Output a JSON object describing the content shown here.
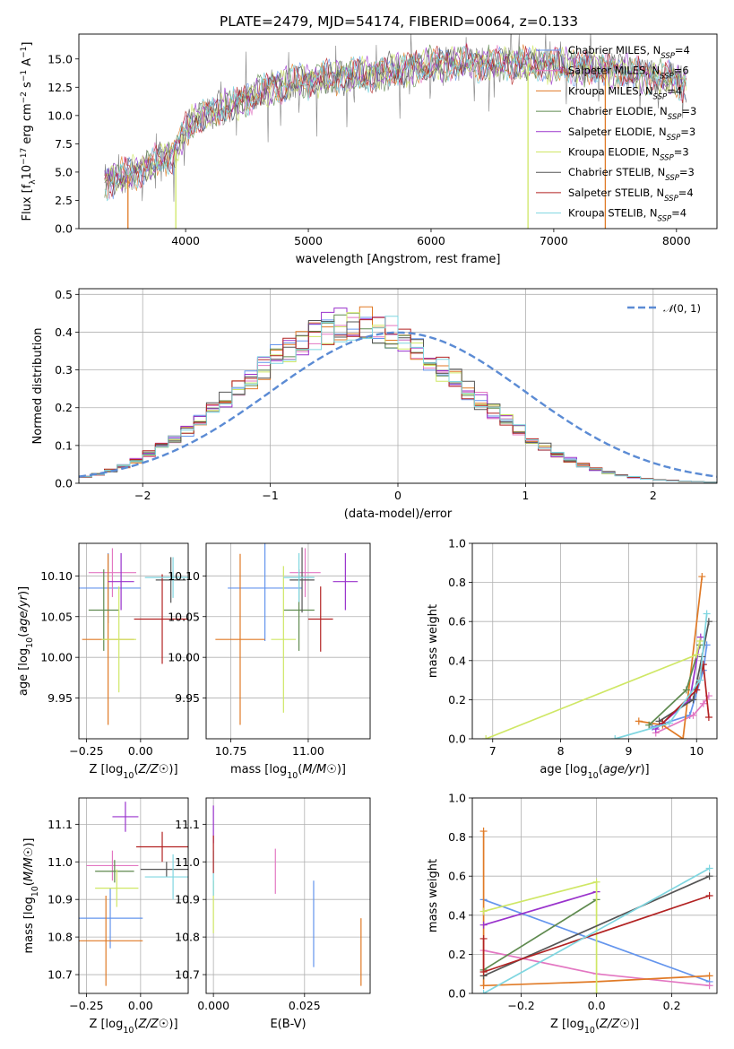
{
  "title": "PLATE=2479, MJD=54174, FIBERID=0064, z=0.133",
  "colors": {
    "Chabrier MILES": "#6495ed",
    "Salpeter MILES": "#e377c2",
    "Kroupa MILES": "#e07a26",
    "Chabrier ELODIE": "#5f8a4f",
    "Salpeter ELODIE": "#9932cc",
    "Kroupa ELODIE": "#cfe765",
    "Chabrier STELIB": "#555555",
    "Salpeter STELIB": "#b22222",
    "Kroupa STELIB": "#7fd6e0",
    "data": "#7f7f7f",
    "normal": "#5b8bd4"
  },
  "chart_data": [
    {
      "id": "spectrum",
      "type": "line",
      "xlabel": "wavelength [Angstrom, rest frame]",
      "ylabel": "Flux [f_λ10^-17 erg cm^-2 s^-1 A^-1]",
      "xlim": [
        3130,
        8330
      ],
      "ylim": [
        0,
        17.2
      ],
      "xticks": [
        4000,
        5000,
        6000,
        7000,
        8000
      ],
      "yticks": [
        0.0,
        2.5,
        5.0,
        7.5,
        10.0,
        12.5,
        15.0
      ],
      "grid": false,
      "legend_position": "top-right",
      "continuum": {
        "x": [
          3340,
          3500,
          3700,
          3900,
          4000,
          4100,
          4300,
          4500,
          4700,
          4900,
          5100,
          5300,
          5500,
          5700,
          5900,
          6100,
          6300,
          6500,
          6700,
          6900,
          7100,
          7300,
          7500,
          7700,
          7900,
          8080
        ],
        "y": [
          4.2,
          4.6,
          5.6,
          6.5,
          8.6,
          9.8,
          10.6,
          11.4,
          12.5,
          13.0,
          13.2,
          13.5,
          13.6,
          14.0,
          14.3,
          14.6,
          14.7,
          14.6,
          14.6,
          14.5,
          14.4,
          14.2,
          14.0,
          13.6,
          13.3,
          12.9
        ]
      },
      "vertical_lines": [
        {
          "series": "Kroupa MILES",
          "x": 3530
        },
        {
          "series": "Kroupa ELODIE",
          "x": 3920
        },
        {
          "series": "Kroupa ELODIE",
          "x": 6790
        },
        {
          "series": "Kroupa MILES",
          "x": 7420
        }
      ],
      "legend": [
        {
          "name": "Chabrier MILES",
          "sub": "SSP",
          "n": 4
        },
        {
          "name": "Salpeter MILES",
          "sub": "SSP",
          "n": 6
        },
        {
          "name": "Kroupa MILES",
          "sub": "SSP",
          "n": 4
        },
        {
          "name": "Chabrier ELODIE",
          "sub": "SSP",
          "n": 3
        },
        {
          "name": "Salpeter ELODIE",
          "sub": "SSP",
          "n": 3
        },
        {
          "name": "Kroupa ELODIE",
          "sub": "SSP",
          "n": 3
        },
        {
          "name": "Chabrier STELIB",
          "sub": "SSP",
          "n": 3
        },
        {
          "name": "Salpeter STELIB",
          "sub": "SSP",
          "n": 4
        },
        {
          "name": "Kroupa STELIB",
          "sub": "SSP",
          "n": 4
        }
      ]
    },
    {
      "id": "residuals",
      "type": "line",
      "xlabel": "(data-model)/error",
      "ylabel": "Normed distribution",
      "xlim": [
        -2.5,
        2.5
      ],
      "ylim": [
        0,
        0.515
      ],
      "xticks": [
        -2,
        -1,
        0,
        1,
        2
      ],
      "yticks": [
        0.0,
        0.1,
        0.2,
        0.3,
        0.4,
        0.5
      ],
      "grid": true,
      "legend_position": "top-right",
      "legend_label": "N(0, 1)",
      "bin_width": 0.1,
      "approx_histogram_heights": [
        0.017,
        0.024,
        0.034,
        0.045,
        0.06,
        0.078,
        0.096,
        0.118,
        0.14,
        0.168,
        0.196,
        0.224,
        0.251,
        0.28,
        0.307,
        0.331,
        0.356,
        0.377,
        0.395,
        0.41,
        0.419,
        0.424,
        0.421,
        0.413,
        0.399,
        0.38,
        0.356,
        0.33,
        0.302,
        0.274,
        0.245,
        0.218,
        0.19,
        0.164,
        0.14,
        0.117,
        0.097,
        0.078,
        0.062,
        0.048,
        0.037,
        0.028,
        0.021,
        0.016,
        0.012,
        0.009,
        0.007,
        0.005,
        0.004,
        0.003
      ]
    },
    {
      "id": "age-vs-Z",
      "type": "scatter",
      "xlabel": "Z [log10(Z/Z☉)]",
      "ylabel": "age  [log10(age/yr)]",
      "xlim": [
        -0.285,
        0.22
      ],
      "ylim": [
        9.9,
        10.14
      ],
      "xticks": [
        -0.25,
        0.0
      ],
      "xtick_labels": [
        "−0.25",
        "0.00"
      ],
      "yticks": [
        9.95,
        10.0,
        10.05,
        10.1
      ],
      "grid": true,
      "points": [
        {
          "series": "Chabrier MILES",
          "x": -0.15,
          "xerr": 0.15,
          "y": 10.085,
          "yerr": 0.043
        },
        {
          "series": "Salpeter MILES",
          "x": -0.13,
          "xerr": 0.11,
          "y": 10.104,
          "yerr": 0.03
        },
        {
          "series": "Kroupa MILES",
          "x": -0.15,
          "xerr": 0.12,
          "y": 10.022,
          "yerr": 0.105
        },
        {
          "series": "Chabrier ELODIE",
          "x": -0.17,
          "xerr": 0.07,
          "y": 10.058,
          "yerr": 0.05
        },
        {
          "series": "Salpeter ELODIE",
          "x": -0.09,
          "xerr": 0.06,
          "y": 10.093,
          "yerr": 0.035
        },
        {
          "series": "Kroupa ELODIE",
          "x": -0.1,
          "xerr": 0.08,
          "y": 10.022,
          "yerr": 0.065
        },
        {
          "series": "Chabrier STELIB",
          "x": 0.14,
          "xerr": 0.07,
          "y": 10.095,
          "yerr": 0.028
        },
        {
          "series": "Salpeter STELIB",
          "x": 0.1,
          "xerr": 0.13,
          "y": 10.047,
          "yerr": 0.055
        },
        {
          "series": "Kroupa STELIB",
          "x": 0.15,
          "xerr": 0.13,
          "y": 10.098,
          "yerr": 0.025
        }
      ]
    },
    {
      "id": "age-vs-mass",
      "type": "scatter",
      "xlabel": "mass [log10(M/M☉)]",
      "ylabel": "",
      "xlim": [
        10.67,
        11.2
      ],
      "ylim": [
        9.9,
        10.14
      ],
      "xticks": [
        10.75,
        11.0
      ],
      "xtick_labels": [
        "10.75",
        "11.00"
      ],
      "yticks": [
        9.95,
        10.0,
        10.05,
        10.1
      ],
      "grid": true,
      "points": [
        {
          "series": "Chabrier MILES",
          "x": 10.86,
          "xerr": 0.12,
          "y": 10.085,
          "yerr": 0.065
        },
        {
          "series": "Salpeter MILES",
          "x": 10.99,
          "xerr": 0.05,
          "y": 10.104,
          "yerr": 0.03
        },
        {
          "series": "Kroupa MILES",
          "x": 10.78,
          "xerr": 0.08,
          "y": 10.022,
          "yerr": 0.105
        },
        {
          "series": "Chabrier ELODIE",
          "x": 10.97,
          "xerr": 0.05,
          "y": 10.058,
          "yerr": 0.05
        },
        {
          "series": "Salpeter ELODIE",
          "x": 11.12,
          "xerr": 0.04,
          "y": 10.093,
          "yerr": 0.035
        },
        {
          "series": "Kroupa ELODIE",
          "x": 10.92,
          "xerr": 0.04,
          "y": 10.022,
          "yerr": 0.09
        },
        {
          "series": "Chabrier STELIB",
          "x": 10.98,
          "xerr": 0.04,
          "y": 10.095,
          "yerr": 0.04
        },
        {
          "series": "Salpeter STELIB",
          "x": 11.04,
          "xerr": 0.04,
          "y": 10.047,
          "yerr": 0.04
        },
        {
          "series": "Kroupa STELIB",
          "x": 10.97,
          "xerr": 0.05,
          "y": 10.098,
          "yerr": 0.03
        }
      ]
    },
    {
      "id": "massweight-vs-age",
      "type": "line",
      "xlabel": "age  [log10(age/yr)]",
      "ylabel": "mass weight",
      "xlim": [
        6.7,
        10.3
      ],
      "ylim": [
        0,
        1
      ],
      "xticks": [
        7,
        8,
        9,
        10
      ],
      "yticks": [
        0.0,
        0.2,
        0.4,
        0.6,
        0.8,
        1.0
      ],
      "grid": true,
      "series": [
        {
          "name": "Chabrier MILES",
          "x": [
            9.35,
            9.9,
            10.1,
            10.15
          ],
          "y": [
            0.06,
            0.12,
            0.35,
            0.48
          ]
        },
        {
          "name": "Salpeter MILES",
          "x": [
            9.4,
            9.95,
            10.1,
            10.18
          ],
          "y": [
            0.03,
            0.12,
            0.18,
            0.22
          ]
        },
        {
          "name": "Kroupa MILES",
          "x": [
            9.15,
            9.5,
            9.8,
            10.08
          ],
          "y": [
            0.09,
            0.07,
            0.0,
            0.83
          ]
        },
        {
          "name": "Chabrier ELODIE",
          "x": [
            9.3,
            9.85,
            10.05
          ],
          "y": [
            0.07,
            0.25,
            0.48
          ]
        },
        {
          "name": "Salpeter ELODIE",
          "x": [
            9.4,
            9.9,
            10.06
          ],
          "y": [
            0.05,
            0.2,
            0.52
          ]
        },
        {
          "name": "Kroupa ELODIE",
          "x": [
            6.9,
            10.0,
            10.05
          ],
          "y": [
            0.0,
            0.43,
            0.5
          ]
        },
        {
          "name": "Chabrier STELIB",
          "x": [
            9.45,
            9.95,
            10.08,
            10.18
          ],
          "y": [
            0.09,
            0.2,
            0.42,
            0.6
          ]
        },
        {
          "name": "Salpeter STELIB",
          "x": [
            9.5,
            10.0,
            10.1,
            10.18
          ],
          "y": [
            0.08,
            0.25,
            0.38,
            0.11
          ]
        },
        {
          "name": "Kroupa STELIB",
          "x": [
            8.8,
            9.6,
            10.05,
            10.15
          ],
          "y": [
            0.0,
            0.08,
            0.3,
            0.64
          ]
        }
      ]
    },
    {
      "id": "mass-vs-Z",
      "type": "scatter",
      "xlabel": "Z [log10(Z/Z☉)]",
      "ylabel": "mass [log10(M/M☉)]",
      "xlim": [
        -0.285,
        0.22
      ],
      "ylim": [
        10.65,
        11.17
      ],
      "xticks": [
        -0.25,
        0.0
      ],
      "xtick_labels": [
        "−0.25",
        "0.00"
      ],
      "yticks": [
        10.7,
        10.8,
        10.9,
        11.0,
        11.1
      ],
      "grid": true,
      "points": [
        {
          "series": "Chabrier MILES",
          "x": -0.14,
          "xerr": 0.15,
          "y": 10.85,
          "yerr": 0.08
        },
        {
          "series": "Salpeter MILES",
          "x": -0.13,
          "xerr": 0.12,
          "y": 10.99,
          "yerr": 0.04
        },
        {
          "series": "Kroupa MILES",
          "x": -0.16,
          "xerr": 0.17,
          "y": 10.79,
          "yerr": 0.12
        },
        {
          "series": "Chabrier ELODIE",
          "x": -0.12,
          "xerr": 0.09,
          "y": 10.975,
          "yerr": 0.03
        },
        {
          "series": "Salpeter ELODIE",
          "x": -0.07,
          "xerr": 0.06,
          "y": 11.12,
          "yerr": 0.04
        },
        {
          "series": "Kroupa ELODIE",
          "x": -0.11,
          "xerr": 0.1,
          "y": 10.93,
          "yerr": 0.05
        },
        {
          "series": "Chabrier STELIB",
          "x": 0.12,
          "xerr": 0.12,
          "y": 10.98,
          "yerr": 0.02
        },
        {
          "series": "Salpeter STELIB",
          "x": 0.1,
          "xerr": 0.12,
          "y": 11.04,
          "yerr": 0.04
        },
        {
          "series": "Kroupa STELIB",
          "x": 0.15,
          "xerr": 0.13,
          "y": 10.96,
          "yerr": 0.06
        }
      ]
    },
    {
      "id": "mass-vs-EBV",
      "type": "scatter",
      "xlabel": "E(B-V)",
      "ylabel": "",
      "xlim": [
        -0.002,
        0.043
      ],
      "ylim": [
        10.65,
        11.17
      ],
      "xticks": [
        0.0,
        0.025
      ],
      "xtick_labels": [
        "0.000",
        "0.025"
      ],
      "yticks": [
        10.7,
        10.8,
        10.9,
        11.0,
        11.1
      ],
      "grid": true,
      "points": [
        {
          "series": "Chabrier MILES",
          "x": 0.0275,
          "y": 10.835,
          "yerr": 0.115
        },
        {
          "series": "Salpeter MILES",
          "x": 0.017,
          "y": 10.975,
          "yerr": 0.06
        },
        {
          "series": "Kroupa MILES",
          "x": 0.0405,
          "y": 10.76,
          "yerr": 0.09
        },
        {
          "series": "Salpeter ELODIE",
          "x": 0.0,
          "y": 11.1,
          "yerr": 0.05
        },
        {
          "series": "Kroupa ELODIE",
          "x": 0.0,
          "y": 10.88,
          "yerr": 0.07
        },
        {
          "series": "Kroupa STELIB",
          "x": 0.0,
          "y": 10.97,
          "yerr": 0.06
        },
        {
          "series": "Salpeter STELIB",
          "x": 0.0,
          "y": 11.02,
          "yerr": 0.05
        }
      ]
    },
    {
      "id": "massweight-vs-Z",
      "type": "line",
      "xlabel": "Z [log10(Z/Z☉)]",
      "ylabel": "mass weight",
      "xlim": [
        -0.33,
        0.32
      ],
      "ylim": [
        0,
        1
      ],
      "xticks": [
        -0.2,
        0.0,
        0.2
      ],
      "xtick_labels": [
        "−0.2",
        "0.0",
        "0.2"
      ],
      "yticks": [
        0.0,
        0.2,
        0.4,
        0.6,
        0.8,
        1.0
      ],
      "grid": true,
      "series": [
        {
          "name": "Chabrier MILES",
          "x": [
            -0.3,
            0.3
          ],
          "y": [
            0.48,
            0.06
          ]
        },
        {
          "name": "Salpeter MILES",
          "x": [
            -0.3,
            0.0,
            0.3
          ],
          "y": [
            0.22,
            0.1,
            0.04
          ]
        },
        {
          "name": "Kroupa MILES",
          "x": [
            -0.3,
            -0.3,
            0.0,
            0.3
          ],
          "y": [
            0.83,
            0.04,
            0.06,
            0.09
          ]
        },
        {
          "name": "Chabrier ELODIE",
          "x": [
            -0.3,
            0.0
          ],
          "y": [
            0.12,
            0.48
          ]
        },
        {
          "name": "Salpeter ELODIE",
          "x": [
            -0.3,
            0.0
          ],
          "y": [
            0.35,
            0.52
          ]
        },
        {
          "name": "Kroupa ELODIE",
          "x": [
            -0.3,
            0.0,
            0.0
          ],
          "y": [
            0.42,
            0.57,
            0.0
          ]
        },
        {
          "name": "Chabrier STELIB",
          "x": [
            -0.3,
            0.3
          ],
          "y": [
            0.09,
            0.6
          ]
        },
        {
          "name": "Salpeter STELIB",
          "x": [
            -0.3,
            -0.3,
            0.3
          ],
          "y": [
            0.28,
            0.11,
            0.5
          ]
        },
        {
          "name": "Kroupa STELIB",
          "x": [
            -0.3,
            0.3
          ],
          "y": [
            0.0,
            0.64
          ]
        }
      ]
    }
  ]
}
